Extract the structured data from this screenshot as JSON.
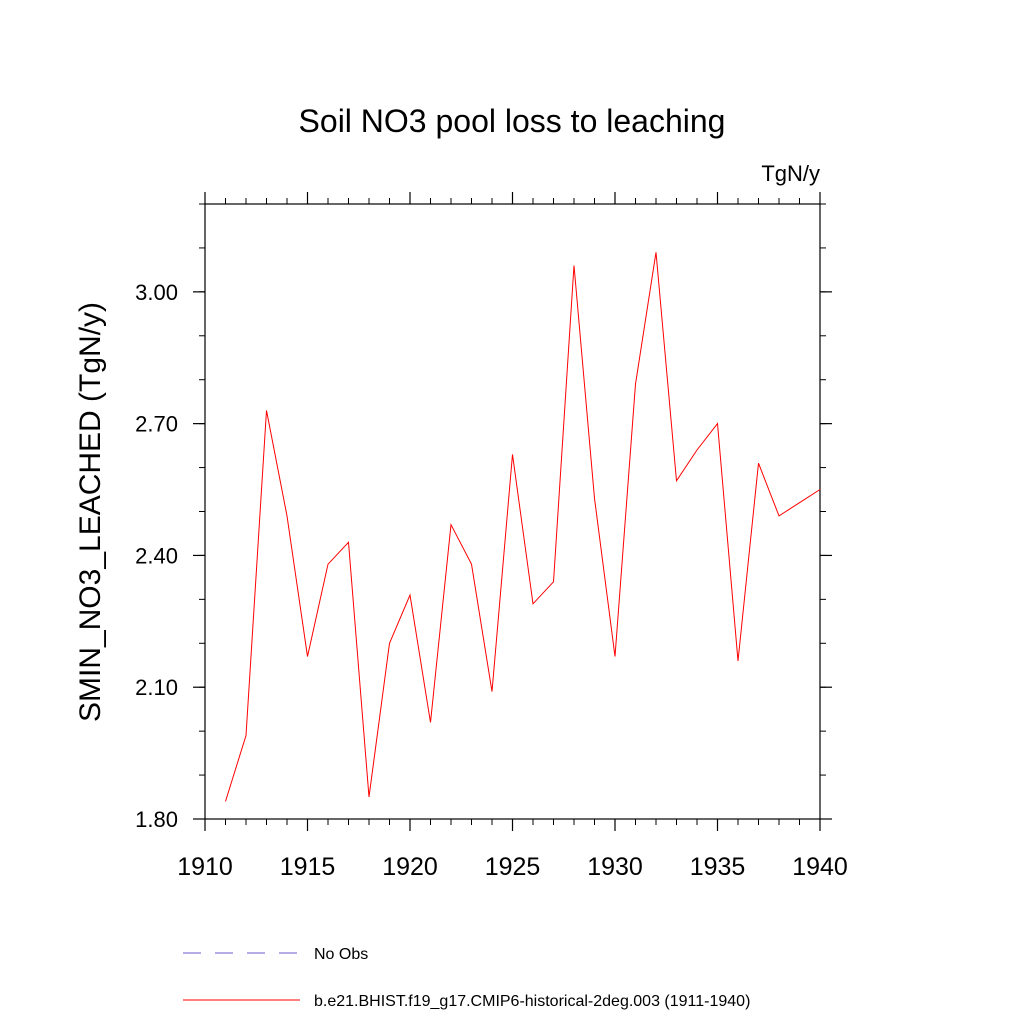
{
  "chart_data": {
    "type": "line",
    "title": "Soil NO3 pool loss to leaching",
    "units": "TgN/y",
    "ylabel": "SMIN_NO3_LEACHED  (TgN/y)",
    "xlabel": "",
    "xlim": [
      1910,
      1940
    ],
    "ylim": [
      1.8,
      3.2
    ],
    "x_ticks": [
      1910,
      1915,
      1920,
      1925,
      1930,
      1935,
      1940
    ],
    "y_ticks": [
      "1.80",
      "2.10",
      "2.40",
      "2.70",
      "3.00"
    ],
    "y_tick_values": [
      1.8,
      2.1,
      2.4,
      2.7,
      3.0
    ],
    "x_minor_step": 1,
    "y_minor_step": 0.1,
    "grid": false,
    "legend_position": "bottom",
    "series": [
      {
        "name": "b.e21.BHIST.f19_g17.CMIP6-historical-2deg.003 (1911-1940)",
        "color": "#ff0000",
        "style": "solid",
        "x": [
          1911,
          1912,
          1913,
          1914,
          1915,
          1916,
          1917,
          1918,
          1919,
          1920,
          1921,
          1922,
          1923,
          1924,
          1925,
          1926,
          1927,
          1928,
          1929,
          1930,
          1931,
          1932,
          1933,
          1934,
          1935,
          1936,
          1937,
          1938,
          1939,
          1940
        ],
        "values": [
          1.84,
          1.99,
          2.73,
          2.49,
          2.17,
          2.38,
          2.43,
          1.85,
          2.2,
          2.31,
          2.02,
          2.47,
          2.38,
          2.09,
          2.63,
          2.29,
          2.34,
          3.06,
          2.53,
          2.17,
          2.79,
          3.09,
          2.57,
          2.64,
          2.7,
          2.16,
          2.61,
          2.49,
          2.52,
          2.55
        ]
      },
      {
        "name": "No Obs",
        "color": "#6a5acd",
        "style": "dashed",
        "x": [],
        "values": []
      }
    ]
  }
}
